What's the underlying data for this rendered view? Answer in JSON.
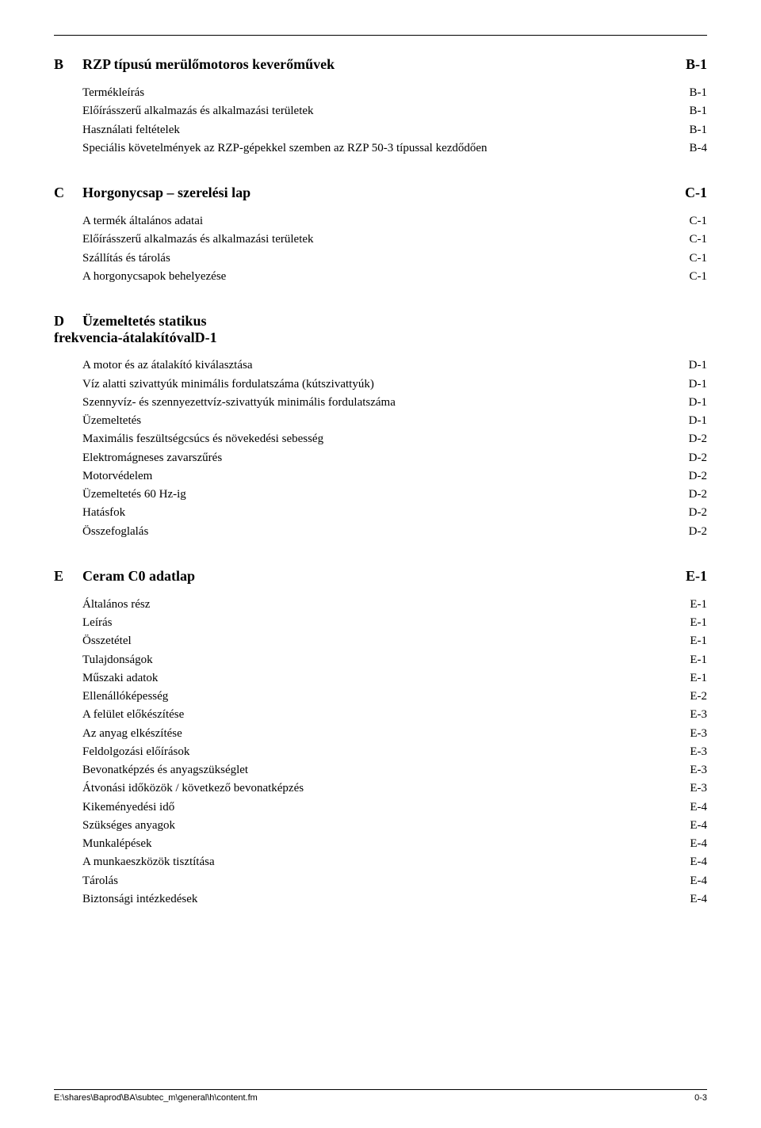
{
  "sections": {
    "B": {
      "letter": "B",
      "title": "RZP típusú merülőmotoros keverőművek",
      "page": "B-1",
      "items": [
        {
          "label": "Termékleírás",
          "page": "B-1"
        },
        {
          "label": "Előírásszerű alkalmazás és alkalmazási területek",
          "page": "B-1"
        },
        {
          "label": "Használati feltételek",
          "page": "B-1"
        },
        {
          "label": "Speciális követelmények az RZP-gépekkel szemben az RZP 50-3 típussal kezdődően",
          "page": "B-4"
        }
      ]
    },
    "C": {
      "letter": "C",
      "title": "Horgonycsap – szerelési lap",
      "page": "C-1",
      "items": [
        {
          "label": "A termék általános adatai",
          "page": "C-1"
        },
        {
          "label": "Előírásszerű alkalmazás és alkalmazási területek",
          "page": "C-1"
        },
        {
          "label": "Szállítás és tárolás",
          "page": "C-1"
        },
        {
          "label": "A horgonycsapok behelyezése",
          "page": "C-1"
        }
      ]
    },
    "D": {
      "letter": "D",
      "title_line1": "Üzemeltetés statikus",
      "title_line2": "frekvencia-átalakítóvalD-1",
      "items": [
        {
          "label": "A motor és az átalakító kiválasztása",
          "page": "D-1"
        },
        {
          "label": "Víz alatti szivattyúk minimális fordulatszáma (kútszivattyúk)",
          "page": "D-1"
        },
        {
          "label": "Szennyvíz- és szennyezettvíz-szivattyúk minimális fordulatszáma",
          "page": "D-1"
        },
        {
          "label": "Üzemeltetés",
          "page": "D-1"
        },
        {
          "label": "Maximális feszültségcsúcs és növekedési sebesség",
          "page": "D-2"
        },
        {
          "label": "Elektromágneses zavarszűrés",
          "page": "D-2"
        },
        {
          "label": "Motorvédelem",
          "page": "D-2"
        },
        {
          "label": "Üzemeltetés 60 Hz-ig",
          "page": "D-2"
        },
        {
          "label": "Hatásfok",
          "page": "D-2"
        },
        {
          "label": "Összefoglalás",
          "page": "D-2"
        }
      ]
    },
    "E": {
      "letter": "E",
      "title": "Ceram C0 adatlap",
      "page": "E-1",
      "items": [
        {
          "label": "Általános rész",
          "page": "E-1"
        },
        {
          "label": "Leírás",
          "page": "E-1"
        },
        {
          "label": "Összetétel",
          "page": "E-1"
        },
        {
          "label": "Tulajdonságok",
          "page": "E-1"
        },
        {
          "label": "Műszaki adatok",
          "page": "E-1"
        },
        {
          "label": "Ellenállóképesség",
          "page": "E-2"
        },
        {
          "label": "A felület előkészítése",
          "page": "E-3"
        },
        {
          "label": "Az anyag elkészítése",
          "page": "E-3"
        },
        {
          "label": "Feldolgozási előírások",
          "page": "E-3"
        },
        {
          "label": "Bevonatképzés és anyagszükséglet",
          "page": "E-3"
        },
        {
          "label": "Átvonási időközök / következő bevonatképzés",
          "page": "E-3"
        },
        {
          "label": "Kikeményedési idő",
          "page": "E-4"
        },
        {
          "label": "Szükséges anyagok",
          "page": "E-4"
        },
        {
          "label": "Munkalépések",
          "page": "E-4"
        },
        {
          "label": "A munkaeszközök tisztítása",
          "page": "E-4"
        },
        {
          "label": "Tárolás",
          "page": "E-4"
        },
        {
          "label": "Biztonsági intézkedések",
          "page": "E-4"
        }
      ]
    }
  },
  "footer": {
    "path": "E:\\shares\\Baprod\\BA\\subtec_m\\general\\h\\content.fm",
    "page_num": "0-3"
  }
}
